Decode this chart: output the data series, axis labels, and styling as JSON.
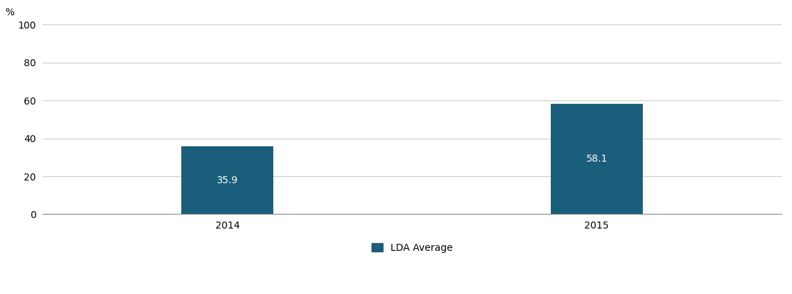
{
  "categories": [
    "2014",
    "2015"
  ],
  "values": [
    35.9,
    58.1
  ],
  "bar_color": "#1b5e7b",
  "bar_width": 0.25,
  "ylim": [
    0,
    100
  ],
  "yticks": [
    0,
    20,
    40,
    60,
    80,
    100
  ],
  "ylabel": "%",
  "legend_label": "LDA Average",
  "label_color": "#ffffff",
  "label_fontsize": 10,
  "grid_color": "#cccccc",
  "axis_color": "#888888",
  "background_color": "#ffffff",
  "tick_fontsize": 10,
  "ylabel_fontsize": 10,
  "xlim": [
    -0.5,
    1.5
  ]
}
